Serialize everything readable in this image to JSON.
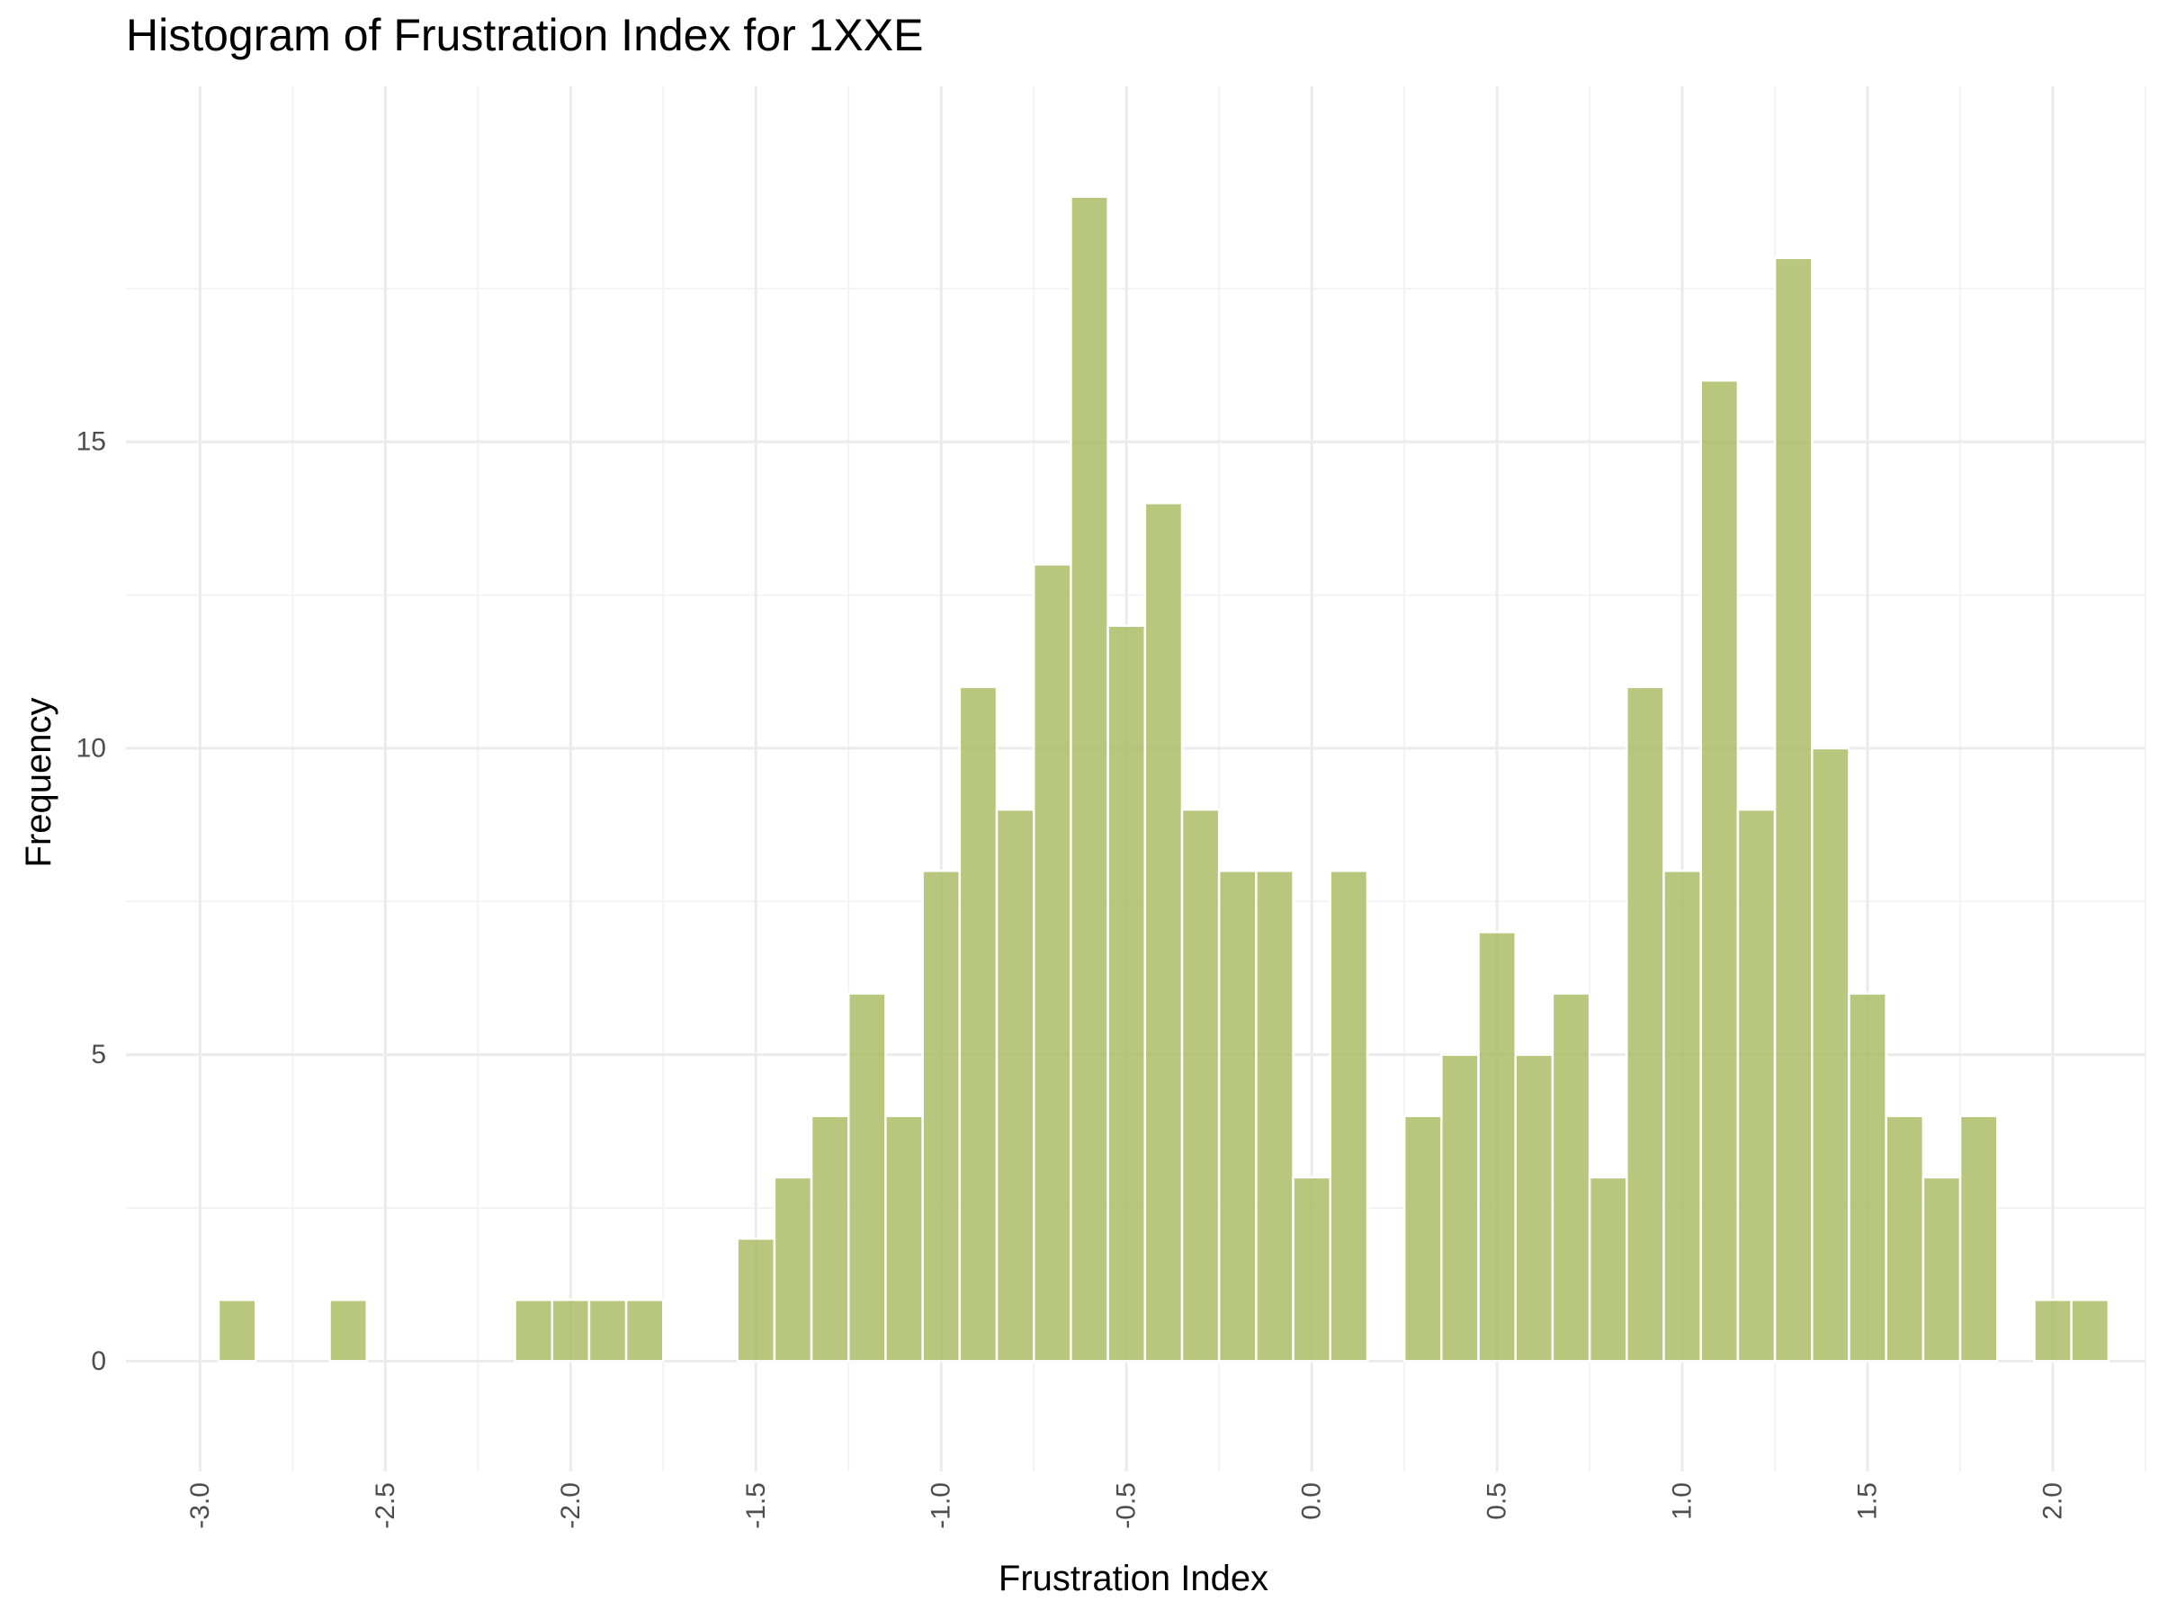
{
  "chart_data": {
    "type": "bar",
    "title": "Histogram of Frustration Index for 1XXE",
    "xlabel": "Frustration Index",
    "ylabel": "Frequency",
    "bin_width": 0.1,
    "bin_centers": [
      -2.9,
      -2.6,
      -2.1,
      -2.0,
      -1.9,
      -1.8,
      -1.5,
      -1.4,
      -1.3,
      -1.2,
      -1.1,
      -1.0,
      -0.9,
      -0.8,
      -0.7,
      -0.6,
      -0.5,
      -0.4,
      -0.3,
      -0.2,
      -0.1,
      0.0,
      0.1,
      0.3,
      0.4,
      0.5,
      0.6,
      0.7,
      0.8,
      0.9,
      1.0,
      1.1,
      1.2,
      1.3,
      1.4,
      1.5,
      1.6,
      1.7,
      1.8,
      2.0,
      2.1
    ],
    "values": [
      1,
      1,
      1,
      1,
      1,
      1,
      2,
      3,
      4,
      6,
      4,
      8,
      11,
      9,
      13,
      19,
      12,
      14,
      9,
      8,
      8,
      3,
      8,
      4,
      5,
      7,
      5,
      6,
      3,
      11,
      8,
      16,
      9,
      18,
      10,
      6,
      4,
      3,
      4,
      1,
      1
    ],
    "xlim": [
      -3.2,
      2.25
    ],
    "ylim": [
      -1.8,
      20.8
    ],
    "x_ticks": [
      "-3.0",
      "-2.5",
      "-2.0",
      "-1.5",
      "-1.0",
      "-0.5",
      "0.0",
      "0.5",
      "1.0",
      "1.5",
      "2.0"
    ],
    "x_tick_values": [
      -3.0,
      -2.5,
      -2.0,
      -1.5,
      -1.0,
      -0.5,
      0.0,
      0.5,
      1.0,
      1.5,
      2.0
    ],
    "y_ticks": [
      "0",
      "5",
      "10",
      "15"
    ],
    "y_tick_values": [
      0,
      5,
      10,
      15
    ],
    "grid": true,
    "bar_color": "#a7b95e",
    "bar_edge_color": "#ffffff",
    "grid_major_color": "#ebebeb",
    "grid_minor_color": "#f3f3f3"
  }
}
